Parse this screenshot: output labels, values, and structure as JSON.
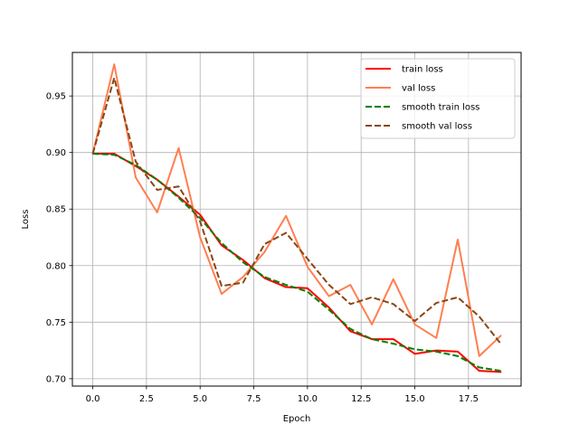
{
  "chart_data": {
    "type": "line",
    "title": "",
    "xlabel": "Epoch",
    "ylabel": "Loss",
    "xlim": [
      -0.95,
      19.95
    ],
    "ylim": [
      0.6935,
      0.9885
    ],
    "x_ticks": [
      0.0,
      2.5,
      5.0,
      7.5,
      10.0,
      12.5,
      15.0,
      17.5
    ],
    "x_tick_labels": [
      "0.0",
      "2.5",
      "5.0",
      "7.5",
      "10.0",
      "12.5",
      "15.0",
      "17.5"
    ],
    "y_ticks": [
      0.7,
      0.75,
      0.8,
      0.85,
      0.9,
      0.95
    ],
    "y_tick_labels": [
      "0.70",
      "0.75",
      "0.80",
      "0.85",
      "0.90",
      "0.95"
    ],
    "grid": true,
    "legend_position": "top-right",
    "x": [
      0,
      1,
      2,
      3,
      4,
      5,
      6,
      7,
      8,
      9,
      10,
      11,
      12,
      13,
      14,
      15,
      16,
      17,
      18,
      19
    ],
    "series": [
      {
        "name": "train loss",
        "color": "#ff0000",
        "dash": "solid",
        "values": [
          0.899,
          0.899,
          0.888,
          0.876,
          0.861,
          0.845,
          0.818,
          0.805,
          0.789,
          0.781,
          0.78,
          0.763,
          0.742,
          0.735,
          0.735,
          0.722,
          0.725,
          0.724,
          0.707,
          0.706
        ]
      },
      {
        "name": "val loss",
        "color": "#ff7f50",
        "dash": "solid",
        "values": [
          0.899,
          0.978,
          0.878,
          0.847,
          0.904,
          0.825,
          0.775,
          0.79,
          0.812,
          0.844,
          0.799,
          0.773,
          0.783,
          0.748,
          0.788,
          0.748,
          0.736,
          0.823,
          0.72,
          0.738
        ]
      },
      {
        "name": "smooth train loss",
        "color": "#008000",
        "dash": "dashed",
        "values": [
          0.899,
          0.898,
          0.889,
          0.876,
          0.86,
          0.842,
          0.82,
          0.803,
          0.79,
          0.783,
          0.777,
          0.761,
          0.744,
          0.735,
          0.731,
          0.726,
          0.724,
          0.72,
          0.71,
          0.707
        ]
      },
      {
        "name": "smooth val loss",
        "color": "#8b4513",
        "dash": "dashed",
        "values": [
          0.899,
          0.966,
          0.892,
          0.867,
          0.87,
          0.839,
          0.782,
          0.785,
          0.819,
          0.829,
          0.806,
          0.783,
          0.766,
          0.772,
          0.766,
          0.751,
          0.767,
          0.772,
          0.755,
          0.731
        ]
      }
    ]
  }
}
